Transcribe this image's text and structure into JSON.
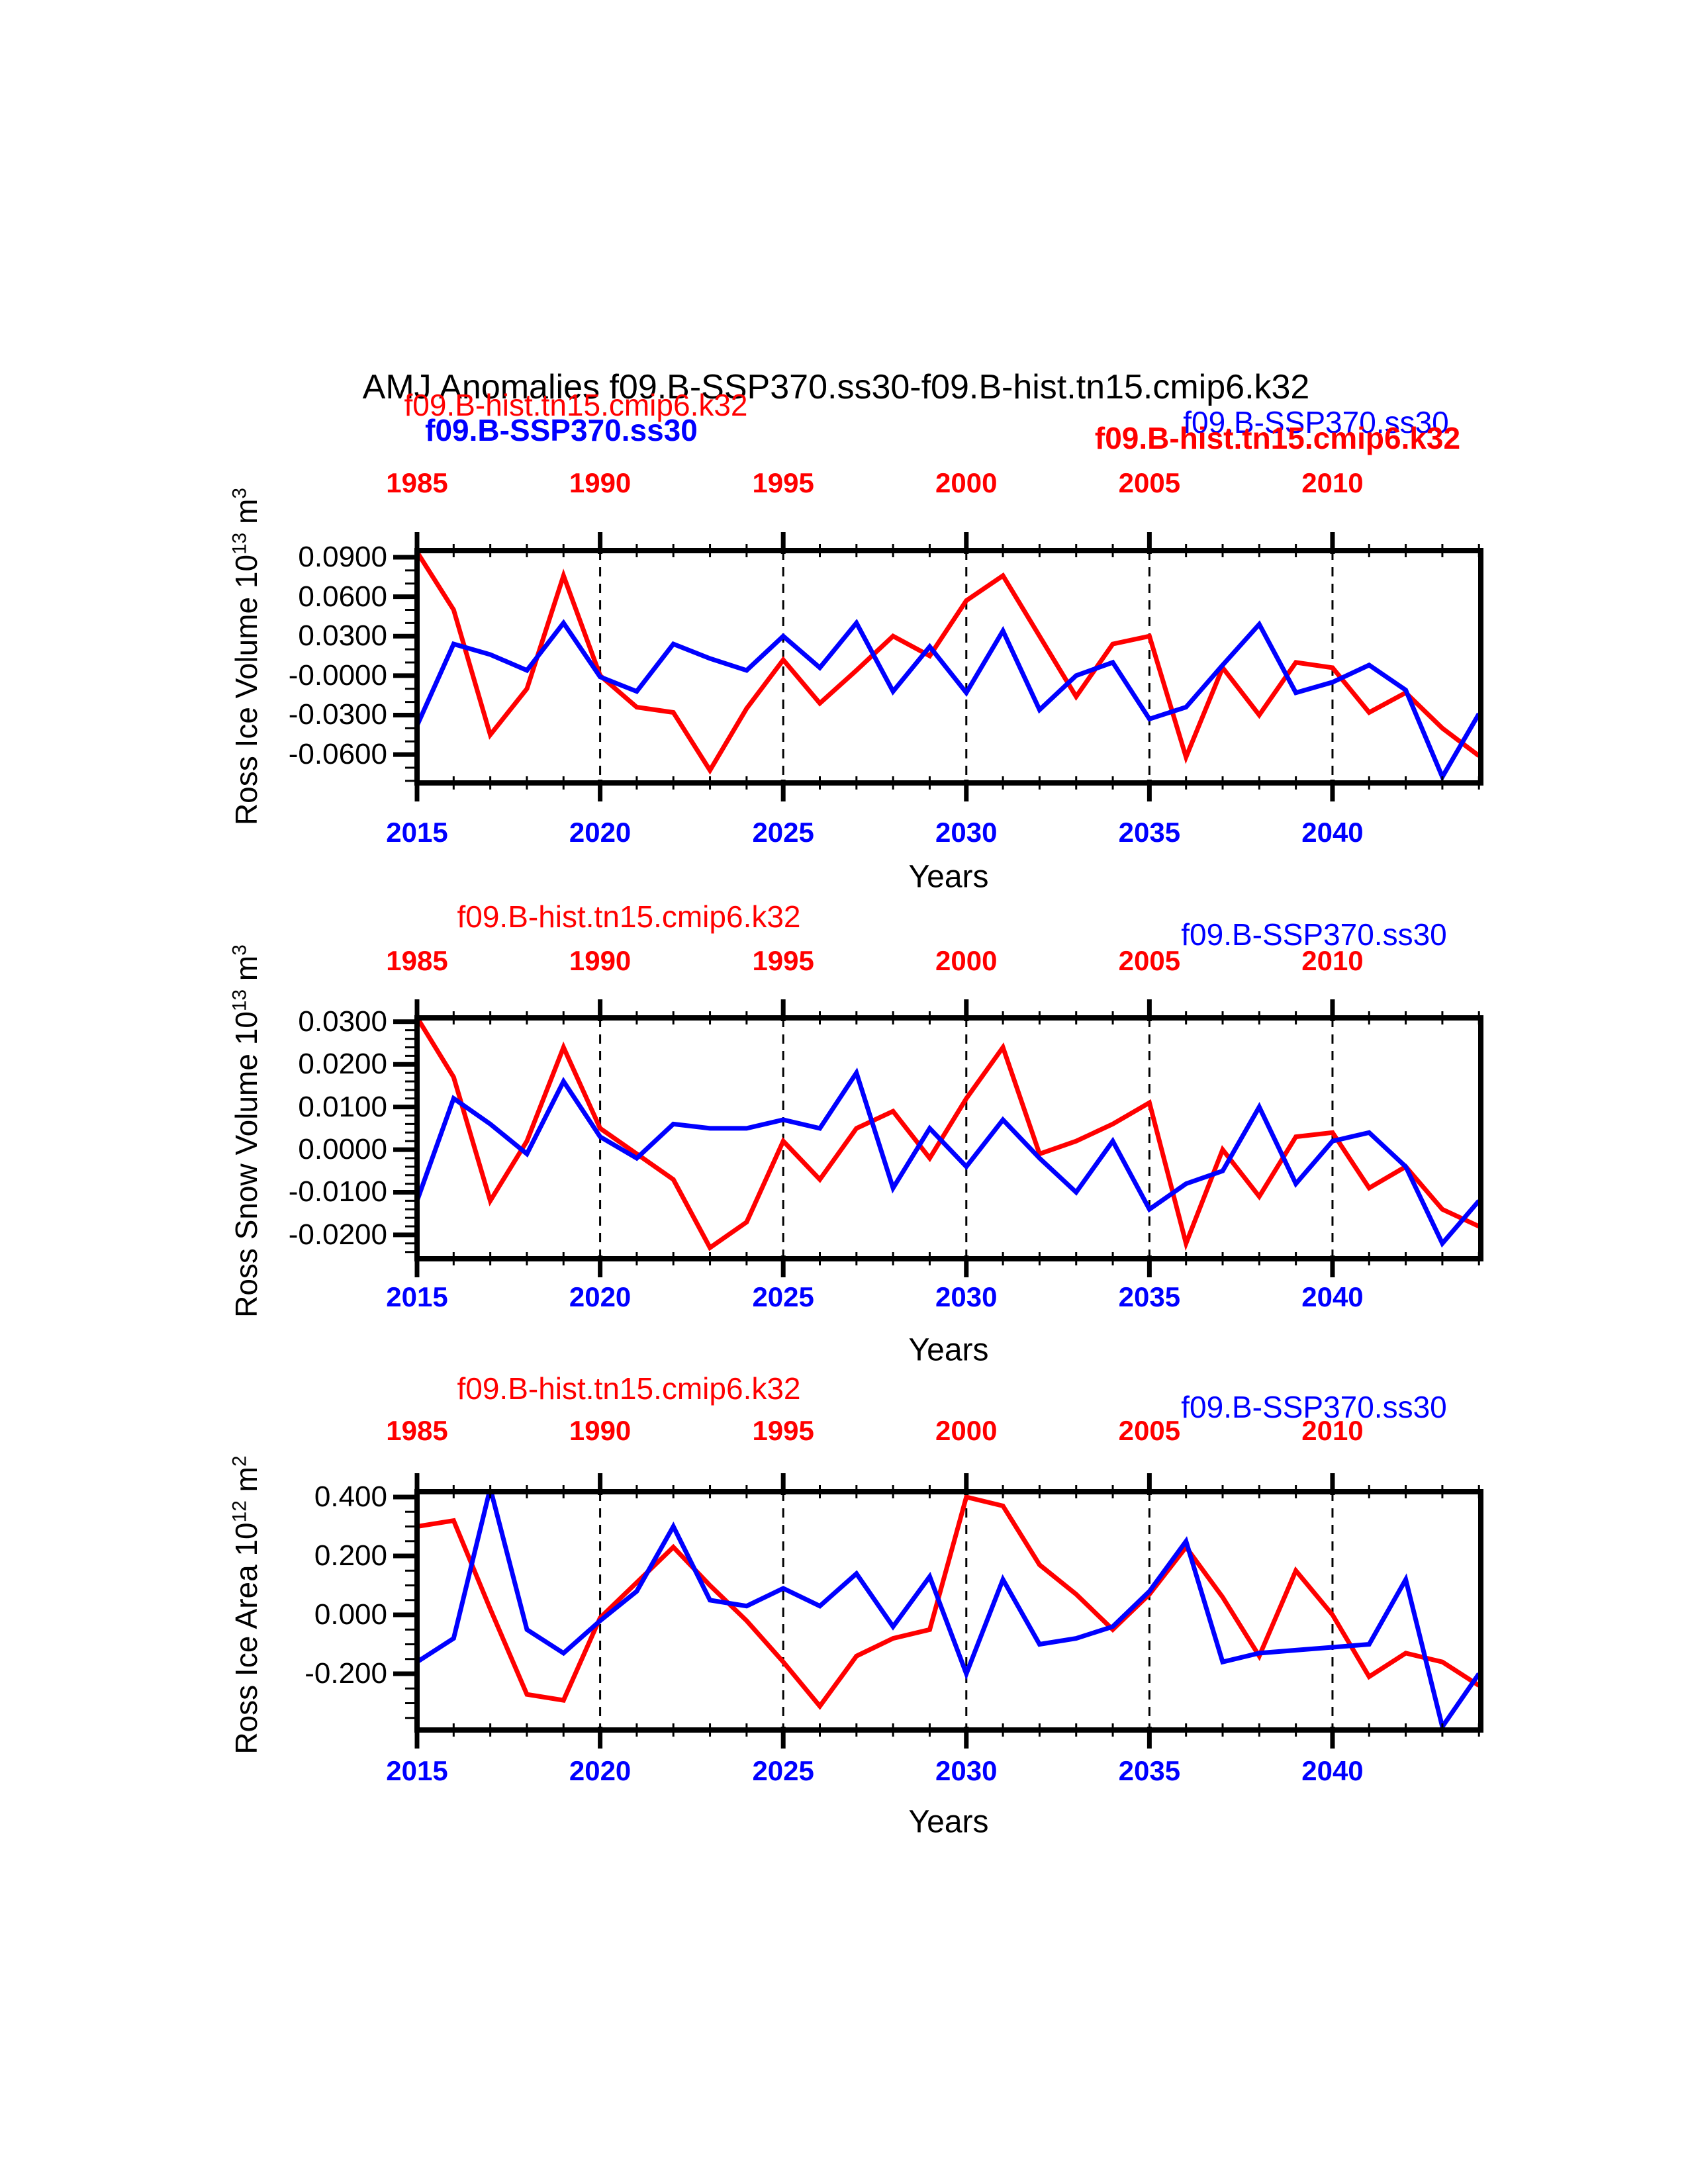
{
  "title": "AMJ Anomalies f09.B-SSP370.ss30-f09.B-hist.tn15.cmip6.k32",
  "chart_data": [
    {
      "type": "line",
      "panel": "ross-ice-volume",
      "ylabel_parts": [
        "Ross Ice Volume 10",
        "13",
        " m",
        "3"
      ],
      "xlabel": "Years",
      "legends": [
        {
          "text": "f09.B-hist.tn15.cmip6.k32",
          "color": "#ff0000",
          "weight": "normal"
        },
        {
          "text": "f09.B-SSP370.ss30",
          "color": "#0000ff",
          "weight": "bold"
        },
        {
          "text": "f09.B-SSP370.ss30",
          "color": "#0000ff",
          "weight": "normal"
        },
        {
          "text": "f09.B-hist.tn15.cmip6.k32",
          "color": "#ff0000",
          "weight": "bold"
        }
      ],
      "top_axis_years": [
        "1985",
        "1990",
        "1995",
        "2000",
        "2005",
        "2010"
      ],
      "bottom_axis_years": [
        "2015",
        "2020",
        "2025",
        "2030",
        "2035",
        "2040"
      ],
      "top_axis_color": "#ff0000",
      "bottom_axis_color": "#0000ff",
      "x_top_range": [
        1985,
        2014.05
      ],
      "x_bottom_range": [
        2015,
        2044.05
      ],
      "grid_years_top": [
        1990,
        1995,
        2000,
        2005,
        2010
      ],
      "ylim": [
        -0.0816,
        0.095
      ],
      "yticks": [
        {
          "label": "0.0900",
          "value": 0.09
        },
        {
          "label": "0.0600",
          "value": 0.06
        },
        {
          "label": "0.0300",
          "value": 0.03
        },
        {
          "label": "-0.0000",
          "value": 0.0
        },
        {
          "label": "-0.0300",
          "value": -0.03
        },
        {
          "label": "-0.0600",
          "value": -0.06
        }
      ],
      "minor_ytick_step": 0.01,
      "series": [
        {
          "name": "f09.B-hist.tn15.cmip6.k32",
          "color": "#ff0000",
          "x_axis": "top",
          "start_year": 1985,
          "values": [
            0.094,
            0.05,
            -0.045,
            -0.01,
            0.076,
            0.0,
            -0.024,
            -0.028,
            -0.072,
            -0.025,
            0.012,
            -0.021,
            0.004,
            0.03,
            0.015,
            0.057,
            0.076,
            0.03,
            -0.016,
            0.024,
            0.03,
            -0.062,
            0.006,
            -0.03,
            0.01,
            0.006,
            -0.028,
            -0.013,
            -0.04,
            -0.061
          ]
        },
        {
          "name": "f09.B-SSP370.ss30",
          "color": "#0000ff",
          "x_axis": "bottom",
          "start_year": 2015,
          "values": [
            -0.038,
            0.024,
            0.016,
            0.004,
            0.04,
            -0.001,
            -0.012,
            0.024,
            0.013,
            0.004,
            0.03,
            0.006,
            0.04,
            -0.012,
            0.022,
            -0.013,
            0.034,
            -0.026,
            0.0,
            0.01,
            -0.033,
            -0.024,
            0.008,
            0.039,
            -0.013,
            -0.005,
            0.008,
            -0.011,
            -0.077,
            -0.029
          ]
        }
      ]
    },
    {
      "type": "line",
      "panel": "ross-snow-volume",
      "ylabel_parts": [
        "Ross Snow Volume 10",
        "13",
        " m",
        "3"
      ],
      "xlabel": "Years",
      "legends": [
        {
          "text": "f09.B-hist.tn15.cmip6.k32",
          "color": "#ff0000",
          "weight": "normal"
        },
        {
          "text": "f09.B-SSP370.ss30",
          "color": "#0000ff",
          "weight": "normal"
        }
      ],
      "top_axis_years": [
        "1985",
        "1990",
        "1995",
        "2000",
        "2005",
        "2010"
      ],
      "bottom_axis_years": [
        "2015",
        "2020",
        "2025",
        "2030",
        "2035",
        "2040"
      ],
      "top_axis_color": "#ff0000",
      "bottom_axis_color": "#0000ff",
      "x_top_range": [
        1985,
        2014.05
      ],
      "x_bottom_range": [
        2015,
        2044.05
      ],
      "grid_years_top": [
        1990,
        1995,
        2000,
        2005,
        2010
      ],
      "ylim": [
        -0.0256,
        0.0309
      ],
      "yticks": [
        {
          "label": "0.0300",
          "value": 0.03
        },
        {
          "label": "0.0200",
          "value": 0.02
        },
        {
          "label": "0.0100",
          "value": 0.01
        },
        {
          "label": "0.0000",
          "value": 0.0
        },
        {
          "label": "-0.0100",
          "value": -0.01
        },
        {
          "label": "-0.0200",
          "value": -0.02
        }
      ],
      "minor_ytick_step": 0.002,
      "series": [
        {
          "name": "f09.B-hist.tn15.cmip6.k32",
          "color": "#ff0000",
          "x_axis": "top",
          "start_year": 1985,
          "values": [
            0.031,
            0.017,
            -0.012,
            0.002,
            0.024,
            0.005,
            -0.001,
            -0.007,
            -0.023,
            -0.017,
            0.002,
            -0.007,
            0.005,
            0.009,
            -0.002,
            0.012,
            0.024,
            -0.001,
            0.002,
            0.006,
            0.011,
            -0.022,
            0.0,
            -0.011,
            0.003,
            0.004,
            -0.009,
            -0.004,
            -0.014,
            -0.018
          ]
        },
        {
          "name": "f09.B-SSP370.ss30",
          "color": "#0000ff",
          "x_axis": "bottom",
          "start_year": 2015,
          "values": [
            -0.012,
            0.012,
            0.006,
            -0.001,
            0.016,
            0.003,
            -0.002,
            0.006,
            0.005,
            0.005,
            0.007,
            0.005,
            0.018,
            -0.009,
            0.005,
            -0.004,
            0.007,
            -0.002,
            -0.01,
            0.002,
            -0.014,
            -0.008,
            -0.005,
            0.01,
            -0.008,
            0.002,
            0.004,
            -0.004,
            -0.022,
            -0.012
          ]
        }
      ]
    },
    {
      "type": "line",
      "panel": "ross-ice-area",
      "ylabel_parts": [
        "Ross Ice Area 10",
        "12",
        " m",
        "2"
      ],
      "xlabel": "Years",
      "legends": [
        {
          "text": "f09.B-hist.tn15.cmip6.k32",
          "color": "#ff0000",
          "weight": "normal"
        },
        {
          "text": "f09.B-SSP370.ss30",
          "color": "#0000ff",
          "weight": "normal"
        }
      ],
      "top_axis_years": [
        "1985",
        "1990",
        "1995",
        "2000",
        "2005",
        "2010"
      ],
      "bottom_axis_years": [
        "2015",
        "2020",
        "2025",
        "2030",
        "2035",
        "2040"
      ],
      "top_axis_color": "#ff0000",
      "bottom_axis_color": "#0000ff",
      "x_top_range": [
        1985,
        2014.05
      ],
      "x_bottom_range": [
        2015,
        2044.05
      ],
      "grid_years_top": [
        1990,
        1995,
        2000,
        2005,
        2010
      ],
      "ylim": [
        -0.391,
        0.418
      ],
      "yticks": [
        {
          "label": "0.400",
          "value": 0.4
        },
        {
          "label": "0.200",
          "value": 0.2
        },
        {
          "label": "0.000",
          "value": 0.0
        },
        {
          "label": "-0.200",
          "value": -0.2
        }
      ],
      "minor_ytick_step": 0.05,
      "series": [
        {
          "name": "f09.B-hist.tn15.cmip6.k32",
          "color": "#ff0000",
          "x_axis": "top",
          "start_year": 1985,
          "values": [
            0.3,
            0.32,
            0.02,
            -0.27,
            -0.29,
            -0.01,
            0.11,
            0.23,
            0.1,
            -0.02,
            -0.16,
            -0.31,
            -0.14,
            -0.08,
            -0.05,
            0.4,
            0.37,
            0.17,
            0.07,
            -0.05,
            0.07,
            0.23,
            0.06,
            -0.14,
            0.15,
            0.0,
            -0.21,
            -0.13,
            -0.16,
            -0.24
          ]
        },
        {
          "name": "f09.B-SSP370.ss30",
          "color": "#0000ff",
          "x_axis": "bottom",
          "start_year": 2015,
          "values": [
            -0.16,
            -0.08,
            0.43,
            -0.05,
            -0.13,
            -0.02,
            0.08,
            0.3,
            0.05,
            0.03,
            0.09,
            0.03,
            0.14,
            -0.04,
            0.13,
            -0.2,
            0.12,
            -0.1,
            -0.08,
            -0.04,
            0.08,
            0.25,
            -0.16,
            -0.13,
            -0.12,
            -0.11,
            -0.1,
            0.12,
            -0.38,
            -0.2
          ]
        }
      ]
    }
  ]
}
